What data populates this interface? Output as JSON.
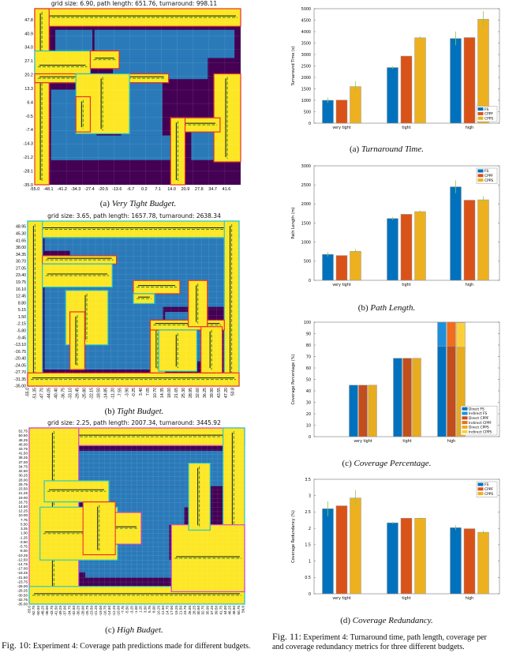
{
  "fig10": {
    "label": "Fig. 10:",
    "caption": "Experiment 4: Coverage path predictions made for different budgets.",
    "maps": [
      {
        "title": "grid size: 6.90, path length: 651.76, turnaround: 998.11",
        "sub": "(a)",
        "caption": "Very Tight Budget.",
        "y_ticks": [
          "47.8",
          "40.9",
          "34.0",
          "27.1",
          "20.2",
          "13.3",
          "6.4",
          "-0.5",
          "-7.4",
          "-14.3",
          "-21.2",
          "-28.1",
          "-35.0"
        ],
        "x_ticks": [
          "-55.0",
          "-48.1",
          "-41.2",
          "-34.3",
          "-27.4",
          "-20.5",
          "-13.6",
          "-6.7",
          "0.2",
          "7.1",
          "14.0",
          "20.9",
          "27.8",
          "34.7",
          "41.6"
        ]
      },
      {
        "title": "grid size: 3.65, path length: 1657.78, turnaround: 2638.34",
        "sub": "(b)",
        "caption": "Tight Budget.",
        "y_ticks": [
          "48.95",
          "45.30",
          "41.65",
          "38.00",
          "34.35",
          "30.70",
          "27.05",
          "23.40",
          "19.75",
          "16.10",
          "12.45",
          "8.80",
          "5.15",
          "1.50",
          "-2.15",
          "-5.80",
          "-9.45",
          "-13.10",
          "-16.75",
          "-20.40",
          "-24.05",
          "-27.70",
          "-31.35",
          "-35.00"
        ],
        "x_ticks": [
          "-55.0",
          "-51.35",
          "-47.70",
          "-44.05",
          "-40.40",
          "-36.75",
          "-33.10",
          "-29.45",
          "-25.80",
          "-22.15",
          "-18.50",
          "-14.85",
          "-11.20",
          "-7.55",
          "-3.90",
          "-0.25",
          "3.40",
          "7.05",
          "10.70",
          "14.35",
          "18.00",
          "21.65",
          "25.30",
          "28.95",
          "32.60",
          "36.25",
          "39.90",
          "43.55",
          "47.20",
          "50.8"
        ]
      },
      {
        "title": "grid size: 2.25, path length: 2007.34, turnaround: 3445.92",
        "sub": "(c)",
        "caption": "High Budget.",
        "y_ticks": [
          "52.75",
          "50.50",
          "48.25",
          "46.00",
          "43.75",
          "41.50",
          "39.25",
          "37.00",
          "34.75",
          "32.50",
          "30.25",
          "28.00",
          "25.75",
          "23.50",
          "21.25",
          "19.00",
          "16.75",
          "14.50",
          "12.25",
          "10.00",
          "7.75",
          "5.50",
          "3.25",
          "1.00",
          "-1.25",
          "-3.50",
          "-5.75",
          "-8.00",
          "-10.25",
          "-12.50",
          "-14.75",
          "-17.00",
          "-19.25",
          "-21.50",
          "-23.75",
          "-26.00",
          "-28.25",
          "-30.50",
          "-32.75",
          "-35.00"
        ],
        "x_ticks": [
          "-55.0",
          "-52.75",
          "-50.50",
          "-48.25",
          "-46.00",
          "-43.75",
          "-41.50",
          "-39.25",
          "-37.00",
          "-34.75",
          "-32.50",
          "-30.25",
          "-28.00",
          "-25.75",
          "-23.50",
          "-21.25",
          "-19.00",
          "-16.75",
          "-14.50",
          "-12.25",
          "-10.00",
          "-7.75",
          "-5.50",
          "-3.25",
          "-1.00",
          "1.25",
          "3.50",
          "5.75",
          "8.00",
          "10.25",
          "12.50",
          "14.75",
          "17.00",
          "19.25",
          "21.50",
          "23.75",
          "26.00",
          "28.25",
          "30.50",
          "32.75",
          "35.00",
          "37.25",
          "39.50",
          "41.75",
          "44.00",
          "46.25",
          "48.50",
          "50.75",
          "56.8"
        ]
      }
    ],
    "colors": {
      "obstacle": "#440154",
      "free": "#2a7ab9",
      "covered": "#fde725",
      "cell_border_red": "#e8302a",
      "cell_border_cyan": "#22c5c8",
      "cell_border_magenta": "#d040d0",
      "path": "#111111",
      "dashed_path": "#2f8a2f"
    }
  },
  "fig11": {
    "label": "Fig. 11:",
    "caption_line1": "Experiment 4: Turnaround time, path length, coverage per",
    "caption_line2": "and coverage redundancy metrics for three different budgets."
  },
  "chart_data": [
    {
      "type": "bar",
      "sub": "(a)",
      "caption": "Turnaround Time.",
      "ylabel": "Turnaround Time (s)",
      "xlabel": "",
      "categories": [
        "very tight",
        "tight",
        "high"
      ],
      "ylim": [
        0,
        5000
      ],
      "yticks": [
        0,
        500,
        1000,
        1500,
        2000,
        2500,
        3000,
        3500,
        4000,
        4500,
        5000
      ],
      "legend": "bottom-right",
      "series": [
        {
          "name": "FS",
          "color": "#0072bd",
          "values": [
            1000,
            2430,
            3700
          ],
          "errors": [
            110,
            60,
            300
          ]
        },
        {
          "name": "CPPF",
          "color": "#d95319",
          "values": [
            1010,
            2930,
            3740
          ],
          "errors": [
            0,
            0,
            0
          ]
        },
        {
          "name": "CPPS",
          "color": "#edb120",
          "values": [
            1600,
            3730,
            4540
          ],
          "errors": [
            230,
            60,
            350
          ]
        }
      ]
    },
    {
      "type": "bar",
      "sub": "(b)",
      "caption": "Path Length.",
      "ylabel": "Path Length (m)",
      "xlabel": "",
      "categories": [
        "very tight",
        "tight",
        "high"
      ],
      "ylim": [
        0,
        3000
      ],
      "yticks": [
        0,
        500,
        1000,
        1500,
        2000,
        2500,
        3000
      ],
      "legend": "top-right",
      "series": [
        {
          "name": "FS",
          "color": "#0072bd",
          "values": [
            680,
            1620,
            2450
          ],
          "errors": [
            60,
            40,
            170
          ]
        },
        {
          "name": "CPPF",
          "color": "#d95319",
          "values": [
            650,
            1730,
            2100
          ],
          "errors": [
            0,
            0,
            0
          ]
        },
        {
          "name": "CPPS",
          "color": "#edb120",
          "values": [
            760,
            1800,
            2110
          ],
          "errors": [
            60,
            30,
            90
          ]
        }
      ]
    },
    {
      "type": "bar",
      "stacked": true,
      "sub": "(c)",
      "caption": "Coverage Percentage.",
      "ylabel": "Coverage Percentage (%)",
      "xlabel": "",
      "categories": [
        "very tight",
        "tight",
        "high"
      ],
      "ylim": [
        0,
        100
      ],
      "yticks": [
        0,
        10,
        20,
        30,
        40,
        50,
        60,
        70,
        80,
        90,
        100
      ],
      "legend": "bottom-right",
      "series": [
        {
          "name": "Direct FS",
          "group": "FS",
          "color": "#0072bd",
          "values": [
            45,
            68.5,
            79
          ]
        },
        {
          "name": "Indirect FS",
          "group": "FS",
          "color": "#1f8fdb",
          "values": [
            0,
            0,
            21
          ]
        },
        {
          "name": "Direct CPPF",
          "group": "CPPF",
          "color": "#c24e1c",
          "values": [
            45,
            68.5,
            79
          ]
        },
        {
          "name": "Indirect CPPF",
          "group": "CPPF",
          "color": "#f26c1c",
          "values": [
            0,
            0,
            21
          ]
        },
        {
          "name": "Direct CPPS",
          "group": "CPPS",
          "color": "#e8ac20",
          "values": [
            45,
            68.5,
            78
          ]
        },
        {
          "name": "Indirect CPPS",
          "group": "CPPS",
          "color": "#fbd03a",
          "values": [
            0,
            0,
            21.5
          ]
        }
      ]
    },
    {
      "type": "bar",
      "sub": "(d)",
      "caption": "Coverage Redundancy.",
      "ylabel": "Coverage Redundancy (%)",
      "xlabel": "",
      "categories": [
        "very tight",
        "tight",
        "high"
      ],
      "ylim": [
        0,
        3.5
      ],
      "yticks": [
        0,
        0.5,
        1,
        1.5,
        2,
        2.5,
        3,
        3.5
      ],
      "legend": "top-right",
      "series": [
        {
          "name": "FS",
          "color": "#0072bd",
          "values": [
            2.6,
            2.17,
            2.02
          ],
          "errors": [
            0.23,
            0.03,
            0.07
          ]
        },
        {
          "name": "CPPF",
          "color": "#d95319",
          "values": [
            2.69,
            2.31,
            1.99
          ],
          "errors": [
            0,
            0,
            0
          ]
        },
        {
          "name": "CPPS",
          "color": "#edb120",
          "values": [
            2.93,
            2.31,
            1.88
          ],
          "errors": [
            0.24,
            0.02,
            0.05
          ]
        }
      ]
    }
  ]
}
